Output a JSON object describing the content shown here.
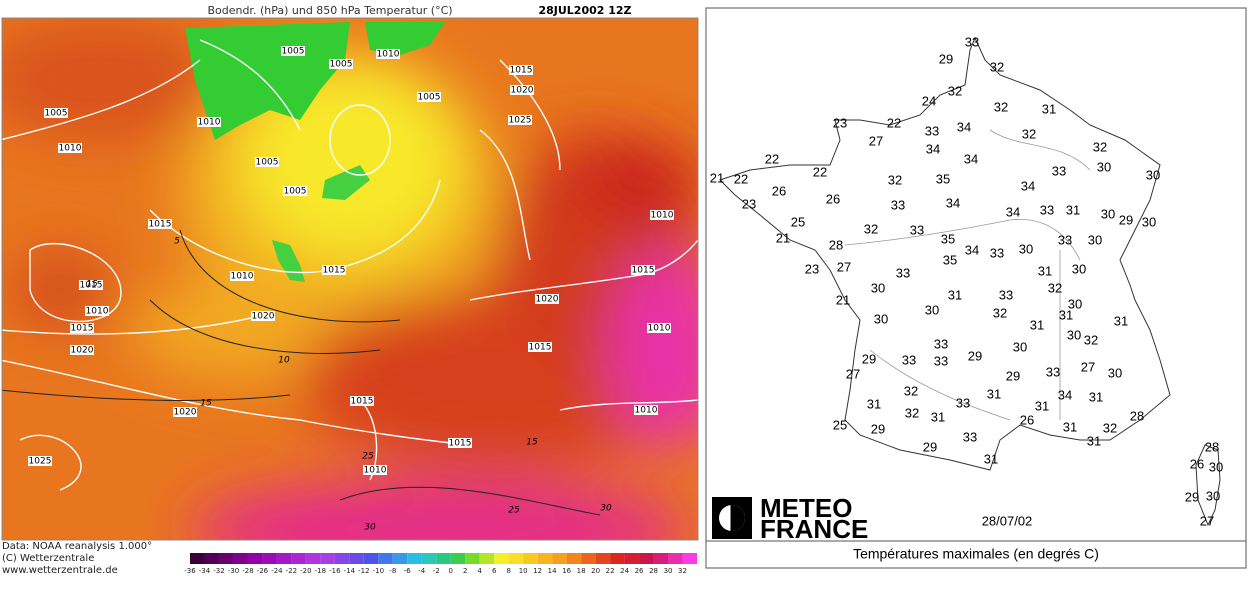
{
  "left_map": {
    "title": "Bodendr. (hPa) und 850 hPa Temperatur (°C)",
    "datetime": "28JUL2002 12Z",
    "isobar_labels": [
      1005,
      1010,
      1005,
      1015,
      1020,
      1005,
      1005,
      1010,
      1025,
      1010,
      1005,
      1005,
      1015,
      1010,
      1010,
      1015,
      1015,
      1015,
      1010,
      1020,
      1020,
      1010,
      1015,
      1020,
      1015,
      1015,
      1010,
      1020,
      1015,
      1025,
      1010
    ],
    "temperature_labels": [
      5,
      15,
      10,
      15,
      15,
      25,
      25,
      30,
      30
    ],
    "credits": [
      "Data: NOAA reanalysis 1.000°",
      "(C) Wetterzentrale",
      "www.wetterzentrale.de"
    ],
    "colorbar_labels": [
      -36,
      -34,
      -32,
      -30,
      -28,
      -26,
      -24,
      -22,
      -20,
      -18,
      -16,
      -14,
      -12,
      -10,
      -8,
      -6,
      -4,
      -2,
      0,
      2,
      4,
      6,
      8,
      10,
      12,
      14,
      16,
      18,
      20,
      22,
      24,
      26,
      28,
      30,
      32
    ]
  },
  "right_map": {
    "station_temperatures": [
      33,
      29,
      32,
      24,
      32,
      32,
      31,
      23,
      22,
      33,
      34,
      27,
      32,
      34,
      32,
      22,
      34,
      30,
      22,
      33,
      30,
      21,
      22,
      32,
      35,
      26,
      34,
      26,
      33,
      34,
      34,
      33,
      31,
      30,
      29,
      30,
      23,
      25,
      32,
      33,
      35,
      21,
      28,
      34,
      33,
      30,
      33,
      30,
      35,
      27,
      23,
      33,
      31,
      30,
      30,
      32,
      31,
      33,
      21,
      30,
      30,
      32,
      30,
      31,
      31,
      31,
      30,
      32,
      33,
      30,
      29,
      33,
      33,
      29,
      27,
      33,
      30,
      27,
      29,
      32,
      31,
      34,
      31,
      31,
      33,
      32,
      31,
      31,
      26,
      28,
      25,
      29,
      31,
      32,
      33,
      31,
      29,
      31,
      28,
      26,
      30,
      29,
      30,
      27
    ],
    "logo": [
      "METEO",
      "FRANCE"
    ],
    "date": "28/07/02",
    "caption": "Températures maximales (en degrés C)"
  }
}
